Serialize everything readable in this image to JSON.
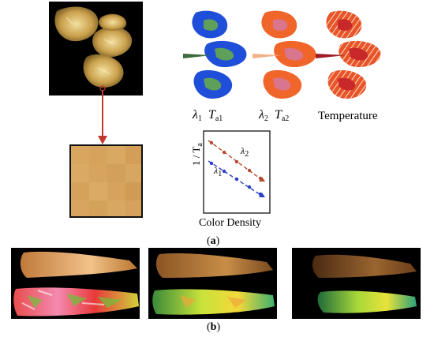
{
  "labels": {
    "lambda1": "λ",
    "lambda1_sub": "1",
    "t_a1": "T",
    "t_a1_sub": "a1",
    "lambda2": "λ",
    "lambda2_sub": "2",
    "t_a2": "T",
    "t_a2_sub": "a2",
    "temperature": "Temperature",
    "panel_a": "a",
    "panel_b": "b"
  },
  "inset_plot": {
    "y_axis_label": "1 / T",
    "y_axis_label_sub": "a",
    "x_axis_label": "Color Density",
    "series": [
      {
        "label": "λ",
        "label_sub": "2",
        "color": "#b44a2e"
      },
      {
        "label": "λ",
        "label_sub": "1",
        "color": "#2b3fc4"
      }
    ]
  },
  "colors": {
    "blue_flame": "#1f4ed8",
    "orange_flame": "#f0652a",
    "red_flame": "#c8282a",
    "connector": "#c0392b",
    "green_core": "#5ea05a",
    "pink_core": "#d9768e"
  }
}
